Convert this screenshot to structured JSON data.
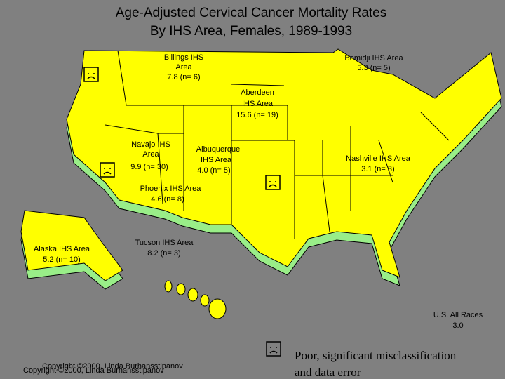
{
  "header": {
    "title_lines": [
      "Age-Adjusted Cervical Cancer Mortality Rates",
      "By IHS Area, Females, 1989-1993"
    ]
  },
  "areas": [
    {
      "name_lines": [
        "Billings IHS",
        "Area"
      ],
      "rate": "7.8 (n= 6)"
    },
    {
      "name_lines": [
        "Bemidji IHS Area"
      ],
      "rate": "5.3 (n= 5)"
    },
    {
      "name_lines": [
        "Aberdeen",
        "IHS Area"
      ],
      "rate": "15.6 (n= 19)"
    },
    {
      "name_lines": [
        "Navajo IHS",
        "Area"
      ],
      "rate": "9.9 (n= 30)"
    },
    {
      "name_lines": [
        "Albuquerque",
        "IHS Area"
      ],
      "rate": "4.0 (n= 5)"
    },
    {
      "name_lines": [
        "Nashville IHS Area"
      ],
      "rate": "3.1 (n= 3)"
    },
    {
      "name_lines": [
        "Phoenix IHS Area"
      ],
      "rate": "4.6 (n= 8)"
    },
    {
      "name_lines": [
        "Tucson IHS Area"
      ],
      "rate": "8.2 (n= 3)"
    },
    {
      "name_lines": [
        "Alaska IHS Area"
      ],
      "rate": "5.2 (n= 10)"
    }
  ],
  "us_all_races": {
    "label": "U.S. All Races",
    "rate": "3.0"
  },
  "legend": {
    "lines": [
      "Poor, significant misclassification",
      "and data error"
    ]
  },
  "copyright": "Copyright ©2000, Linda Burhansstipanov"
}
